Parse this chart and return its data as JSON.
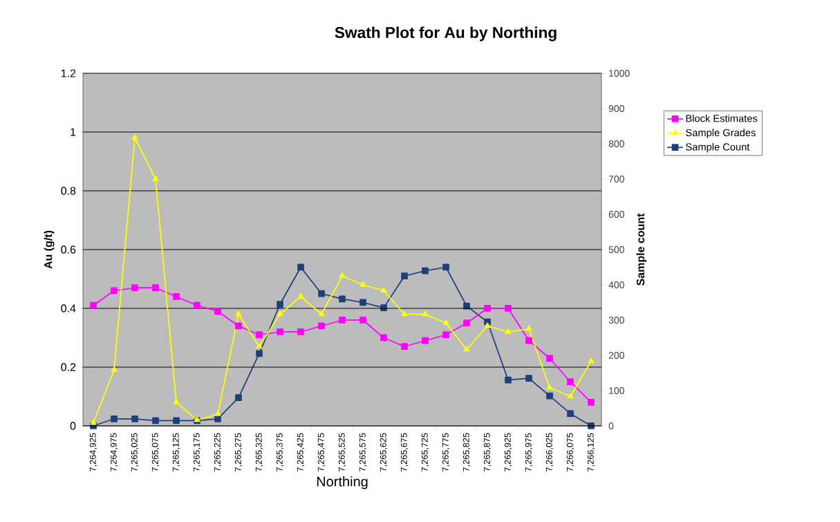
{
  "chart_data": {
    "type": "line",
    "title": "Swath Plot for Au by Northing",
    "xlabel": "Northing",
    "ylabel": "Au (g/t)",
    "y2label": "Sample count",
    "categories": [
      "7,264,925",
      "7,264,975",
      "7,265,025",
      "7,265,075",
      "7,265,125",
      "7,265,175",
      "7,265,225",
      "7,265,275",
      "7,265,325",
      "7,265,375",
      "7,265,425",
      "7,265,475",
      "7,265,525",
      "7,265,575",
      "7,265,625",
      "7,265,675",
      "7,265,725",
      "7,265,775",
      "7,265,825",
      "7,265,875",
      "7,265,925",
      "7,265,975",
      "7,266,025",
      "7,266,075",
      "7,266,125"
    ],
    "series": [
      {
        "name": "Block Estimates",
        "color": "#ff00ff",
        "marker": "square",
        "values": [
          0.41,
          0.46,
          0.47,
          0.47,
          0.44,
          0.41,
          0.39,
          0.34,
          0.31,
          0.32,
          0.32,
          0.34,
          0.36,
          0.36,
          0.3,
          0.27,
          0.29,
          0.31,
          0.35,
          0.4,
          0.4,
          0.29,
          0.23,
          0.15,
          0.08
        ]
      },
      {
        "name": "Sample Grades",
        "color": "#ffff00",
        "marker": "triangle",
        "values": [
          0.01,
          0.19,
          0.98,
          0.84,
          0.08,
          0.02,
          0.04,
          0.38,
          0.27,
          0.38,
          0.44,
          0.38,
          0.51,
          0.48,
          0.46,
          0.38,
          0.38,
          0.35,
          0.26,
          0.34,
          0.32,
          0.33,
          0.13,
          0.1,
          0.22
        ]
      },
      {
        "name": "Sample Count",
        "color": "#1f3f7a",
        "marker": "square",
        "axis": "y2",
        "values": [
          0,
          20,
          20,
          15,
          15,
          15,
          20,
          80,
          205,
          345,
          450,
          375,
          360,
          350,
          335,
          425,
          440,
          450,
          340,
          295,
          130,
          135,
          85,
          35,
          0
        ]
      }
    ],
    "ylim": [
      0,
      1.2
    ],
    "yticks": [
      0,
      0.2,
      0.4,
      0.6,
      0.8,
      1,
      1.2
    ],
    "y2lim": [
      0,
      1000
    ],
    "y2ticks": [
      0,
      100,
      200,
      300,
      400,
      500,
      600,
      700,
      800,
      900,
      1000
    ],
    "grid": "y",
    "legend": "right",
    "line_style": "solid"
  }
}
